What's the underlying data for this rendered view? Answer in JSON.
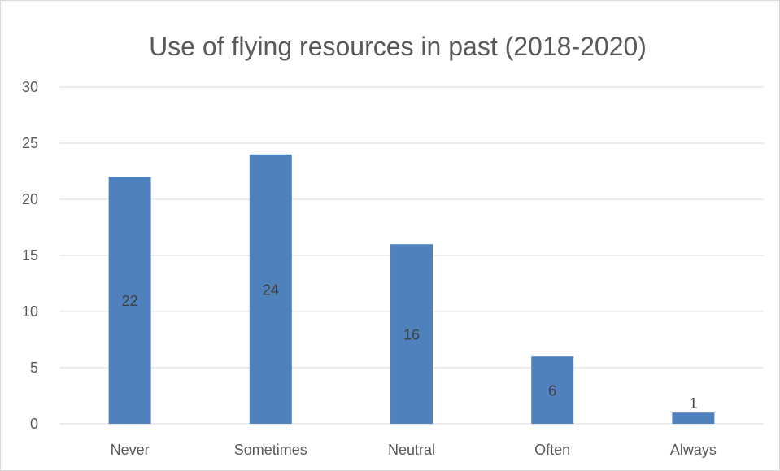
{
  "chart_data": {
    "type": "bar",
    "title": "Use of flying resources in past (2018-2020)",
    "categories": [
      "Never",
      "Sometimes",
      "Neutral",
      "Often",
      "Always"
    ],
    "values": [
      22,
      24,
      16,
      6,
      1
    ],
    "data_labels": [
      "22",
      "24",
      "16",
      "6",
      "1"
    ],
    "yticks": [
      "0",
      "5",
      "10",
      "15",
      "20",
      "25",
      "30"
    ],
    "ylim": [
      0,
      30
    ],
    "ytick_step": 5,
    "xlabel": "",
    "ylabel": "",
    "grid": true,
    "legend": "none",
    "bar_color": "#4f81bd",
    "grid_color": "#d9d9d9",
    "text_color": "#595959"
  }
}
